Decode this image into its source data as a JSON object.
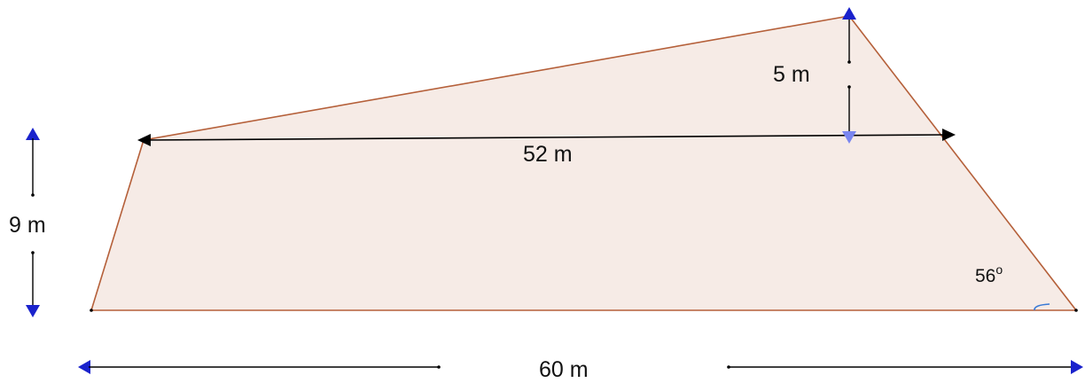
{
  "labels": {
    "top_height": "5 m",
    "inner_width": "52 m",
    "left_height": "9 m",
    "base_width": "60 m",
    "angle_value": "56",
    "angle_unit": "o"
  },
  "colors": {
    "fill": "#f6ebe6",
    "edge": "#b5603a",
    "arrow_blue": "#1a22cc",
    "arrow_black": "#000000",
    "arrow_light_blue": "#7a86f0",
    "angle_arc": "#3a7ad6"
  }
}
